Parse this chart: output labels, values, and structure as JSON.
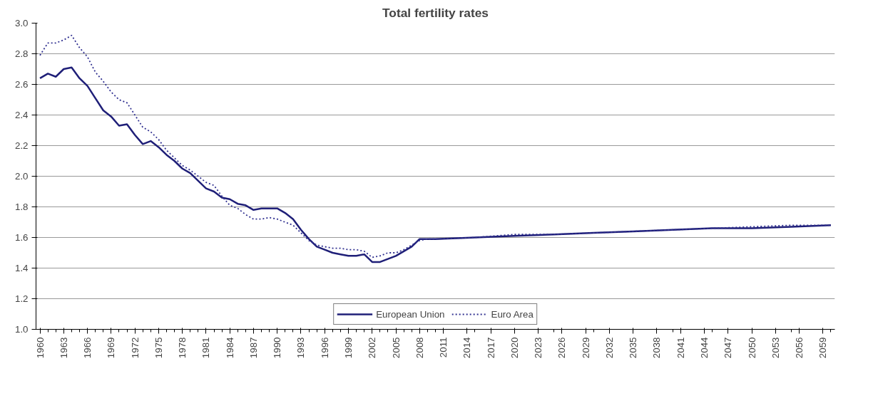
{
  "chart_data": {
    "type": "line",
    "title": "Total fertility rates",
    "series": [
      {
        "name": "European Union",
        "color": "#1f1f78",
        "line_style": "solid",
        "x": [
          1960,
          1961,
          1962,
          1963,
          1964,
          1965,
          1966,
          1967,
          1968,
          1969,
          1970,
          1971,
          1972,
          1973,
          1974,
          1975,
          1976,
          1977,
          1978,
          1979,
          1980,
          1981,
          1982,
          1983,
          1984,
          1985,
          1986,
          1987,
          1988,
          1989,
          1990,
          1991,
          1992,
          1993,
          1994,
          1995,
          1996,
          1997,
          1998,
          1999,
          2000,
          2001,
          2002,
          2003,
          2004,
          2005,
          2006,
          2007,
          2008,
          2009,
          2010,
          2015,
          2020,
          2025,
          2030,
          2035,
          2040,
          2045,
          2050,
          2055,
          2060
        ],
        "values": [
          2.64,
          2.67,
          2.65,
          2.7,
          2.71,
          2.64,
          2.59,
          2.51,
          2.43,
          2.39,
          2.33,
          2.34,
          2.27,
          2.21,
          2.23,
          2.19,
          2.14,
          2.1,
          2.05,
          2.02,
          1.97,
          1.92,
          1.9,
          1.86,
          1.85,
          1.82,
          1.81,
          1.78,
          1.79,
          1.79,
          1.79,
          1.76,
          1.72,
          1.65,
          1.59,
          1.54,
          1.52,
          1.5,
          1.49,
          1.48,
          1.48,
          1.49,
          1.44,
          1.44,
          1.46,
          1.48,
          1.51,
          1.54,
          1.59,
          1.59,
          1.59,
          1.6,
          1.61,
          1.62,
          1.63,
          1.64,
          1.65,
          1.66,
          1.66,
          1.67,
          1.68
        ]
      },
      {
        "name": "Euro Area",
        "color": "#303090",
        "line_style": "dotted",
        "x": [
          1960,
          1961,
          1962,
          1963,
          1964,
          1965,
          1966,
          1967,
          1968,
          1969,
          1970,
          1971,
          1972,
          1973,
          1974,
          1975,
          1976,
          1977,
          1978,
          1979,
          1980,
          1981,
          1982,
          1983,
          1984,
          1985,
          1986,
          1987,
          1988,
          1989,
          1990,
          1991,
          1992,
          1993,
          1994,
          1995,
          1996,
          1997,
          1998,
          1999,
          2000,
          2001,
          2002,
          2003,
          2004,
          2005,
          2006,
          2007,
          2008,
          2009,
          2010,
          2015,
          2020,
          2025,
          2030,
          2035,
          2040,
          2045,
          2050,
          2055,
          2060
        ],
        "values": [
          2.79,
          2.87,
          2.87,
          2.89,
          2.92,
          2.84,
          2.78,
          2.68,
          2.62,
          2.55,
          2.5,
          2.48,
          2.4,
          2.32,
          2.29,
          2.24,
          2.17,
          2.12,
          2.07,
          2.04,
          2.0,
          1.96,
          1.94,
          1.87,
          1.81,
          1.79,
          1.75,
          1.72,
          1.72,
          1.73,
          1.72,
          1.7,
          1.68,
          1.63,
          1.58,
          1.55,
          1.54,
          1.53,
          1.53,
          1.52,
          1.52,
          1.51,
          1.47,
          1.48,
          1.5,
          1.5,
          1.52,
          1.55,
          1.58,
          1.59,
          1.59,
          1.6,
          1.62,
          1.62,
          1.63,
          1.64,
          1.65,
          1.66,
          1.67,
          1.68,
          1.68
        ]
      }
    ],
    "xlim": [
      1959.5,
      2060.5
    ],
    "xticks": [
      1960,
      1963,
      1966,
      1969,
      1972,
      1975,
      1978,
      1981,
      1984,
      1987,
      1990,
      1993,
      1996,
      1999,
      2002,
      2005,
      2008,
      2011,
      2014,
      2017,
      2020,
      2023,
      2026,
      2029,
      2032,
      2035,
      2038,
      2041,
      2044,
      2047,
      2050,
      2053,
      2056,
      2059
    ],
    "ylim": [
      1.0,
      3.0
    ],
    "yticks": [
      {
        "value": 1.0,
        "label": "1.0"
      },
      {
        "value": 1.2,
        "label": "1.2"
      },
      {
        "value": 1.4,
        "label": "1.4"
      },
      {
        "value": 1.6,
        "label": "1.6"
      },
      {
        "value": 1.8,
        "label": "1.8"
      },
      {
        "value": 2.0,
        "label": "2.0"
      },
      {
        "value": 2.2,
        "label": "2.2"
      },
      {
        "value": 2.4,
        "label": "2.4"
      },
      {
        "value": 2.6,
        "label": "2.6"
      },
      {
        "value": 2.8,
        "label": "2.8"
      },
      {
        "value": 3.0,
        "label": "3.0"
      }
    ],
    "grid": "y",
    "legend": "bottom"
  }
}
